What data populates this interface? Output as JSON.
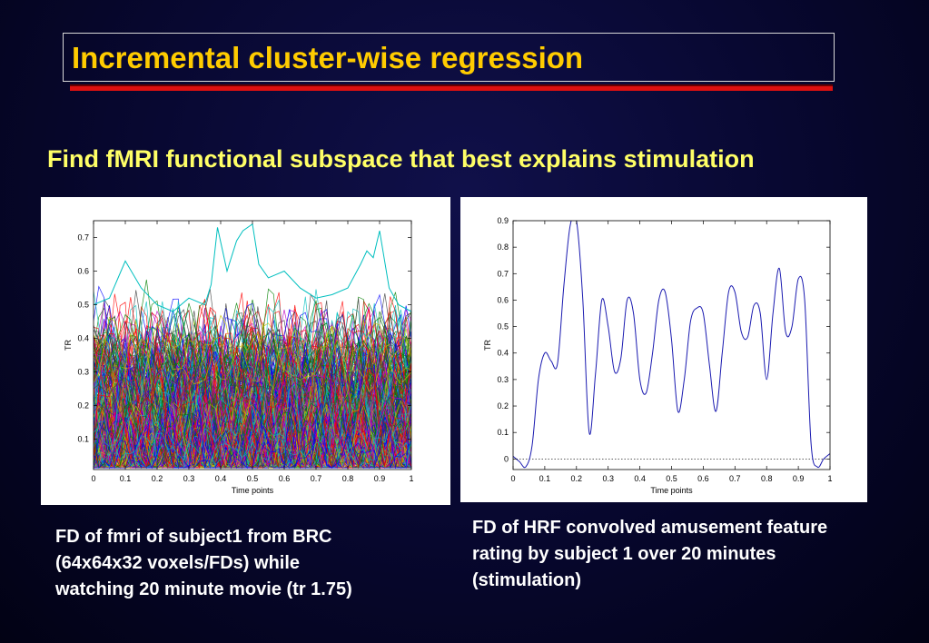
{
  "slide": {
    "title": "Incremental cluster-wise regression",
    "subtitle": "Find fMRI functional subspace that best explains stimulation",
    "caption_left": [
      "FD of fmri of subject1 from BRC",
      "(64x64x32 voxels/FDs)  while",
      "watching 20 minute movie (tr 1.75)"
    ],
    "caption_right": [
      "FD of HRF convolved amusement feature",
      "rating by subject 1 over 20 minutes",
      "(stimulation)"
    ]
  },
  "chart_data": [
    {
      "type": "line",
      "title": "",
      "xlabel": "Time points",
      "ylabel": "TR",
      "xlim": [
        0,
        1
      ],
      "ylim": [
        0.01,
        0.75
      ],
      "xticks": [
        "0",
        "0.1",
        "0.2",
        "0.3",
        "0.4",
        "0.5",
        "0.6",
        "0.7",
        "0.8",
        "0.9",
        "1"
      ],
      "yticks": [
        "0.1",
        "0.2",
        "0.3",
        "0.4",
        "0.5",
        "0.6",
        "0.7"
      ],
      "grid": false,
      "legend": "none",
      "series_count_approx": 400,
      "series_colors": [
        "#0000ff",
        "#008000",
        "#ff0000",
        "#00bfbf",
        "#bf00bf",
        "#bfbf00",
        "#404040"
      ],
      "series_description_values": {
        "typical_band": [
          0.02,
          0.45
        ],
        "peak_series": {
          "color": "#00bfbf",
          "x": [
            0.0,
            0.05,
            0.1,
            0.15,
            0.2,
            0.25,
            0.3,
            0.35,
            0.37,
            0.39,
            0.42,
            0.45,
            0.47,
            0.5,
            0.52,
            0.55,
            0.6,
            0.65,
            0.7,
            0.75,
            0.8,
            0.84,
            0.86,
            0.88,
            0.9,
            0.93,
            0.96,
            1.0
          ],
          "y": [
            0.5,
            0.52,
            0.63,
            0.55,
            0.5,
            0.48,
            0.52,
            0.5,
            0.56,
            0.73,
            0.6,
            0.69,
            0.72,
            0.74,
            0.62,
            0.58,
            0.6,
            0.55,
            0.52,
            0.53,
            0.55,
            0.62,
            0.66,
            0.64,
            0.72,
            0.55,
            0.5,
            0.48
          ]
        }
      }
    },
    {
      "type": "line",
      "title": "",
      "xlabel": "Time points",
      "ylabel": "TR",
      "xlim": [
        0,
        1
      ],
      "ylim": [
        -0.04,
        0.9
      ],
      "xticks": [
        "0",
        "0.1",
        "0.2",
        "0.3",
        "0.4",
        "0.5",
        "0.6",
        "0.7",
        "0.8",
        "0.9",
        "1"
      ],
      "yticks": [
        "0",
        "0.1",
        "0.2",
        "0.3",
        "0.4",
        "0.5",
        "0.6",
        "0.7",
        "0.8",
        "0.9"
      ],
      "grid": false,
      "legend": "none",
      "zero_line": true,
      "series": [
        {
          "color": "#1a1ab0",
          "x": [
            0,
            0.02,
            0.04,
            0.06,
            0.08,
            0.1,
            0.12,
            0.14,
            0.16,
            0.18,
            0.2,
            0.22,
            0.24,
            0.26,
            0.28,
            0.3,
            0.32,
            0.34,
            0.36,
            0.38,
            0.4,
            0.42,
            0.44,
            0.46,
            0.48,
            0.5,
            0.52,
            0.54,
            0.56,
            0.58,
            0.6,
            0.62,
            0.64,
            0.66,
            0.68,
            0.7,
            0.72,
            0.74,
            0.76,
            0.78,
            0.8,
            0.82,
            0.84,
            0.86,
            0.88,
            0.9,
            0.92,
            0.94,
            0.96,
            0.98,
            1.0
          ],
          "y": [
            0.01,
            -0.01,
            -0.03,
            0.05,
            0.3,
            0.4,
            0.37,
            0.36,
            0.65,
            0.88,
            0.9,
            0.6,
            0.1,
            0.32,
            0.6,
            0.5,
            0.33,
            0.38,
            0.6,
            0.55,
            0.3,
            0.25,
            0.4,
            0.6,
            0.63,
            0.45,
            0.18,
            0.3,
            0.52,
            0.57,
            0.55,
            0.35,
            0.18,
            0.4,
            0.63,
            0.63,
            0.48,
            0.46,
            0.58,
            0.55,
            0.3,
            0.55,
            0.72,
            0.48,
            0.5,
            0.68,
            0.6,
            0.06,
            -0.03,
            0.0,
            0.02
          ]
        }
      ]
    }
  ]
}
